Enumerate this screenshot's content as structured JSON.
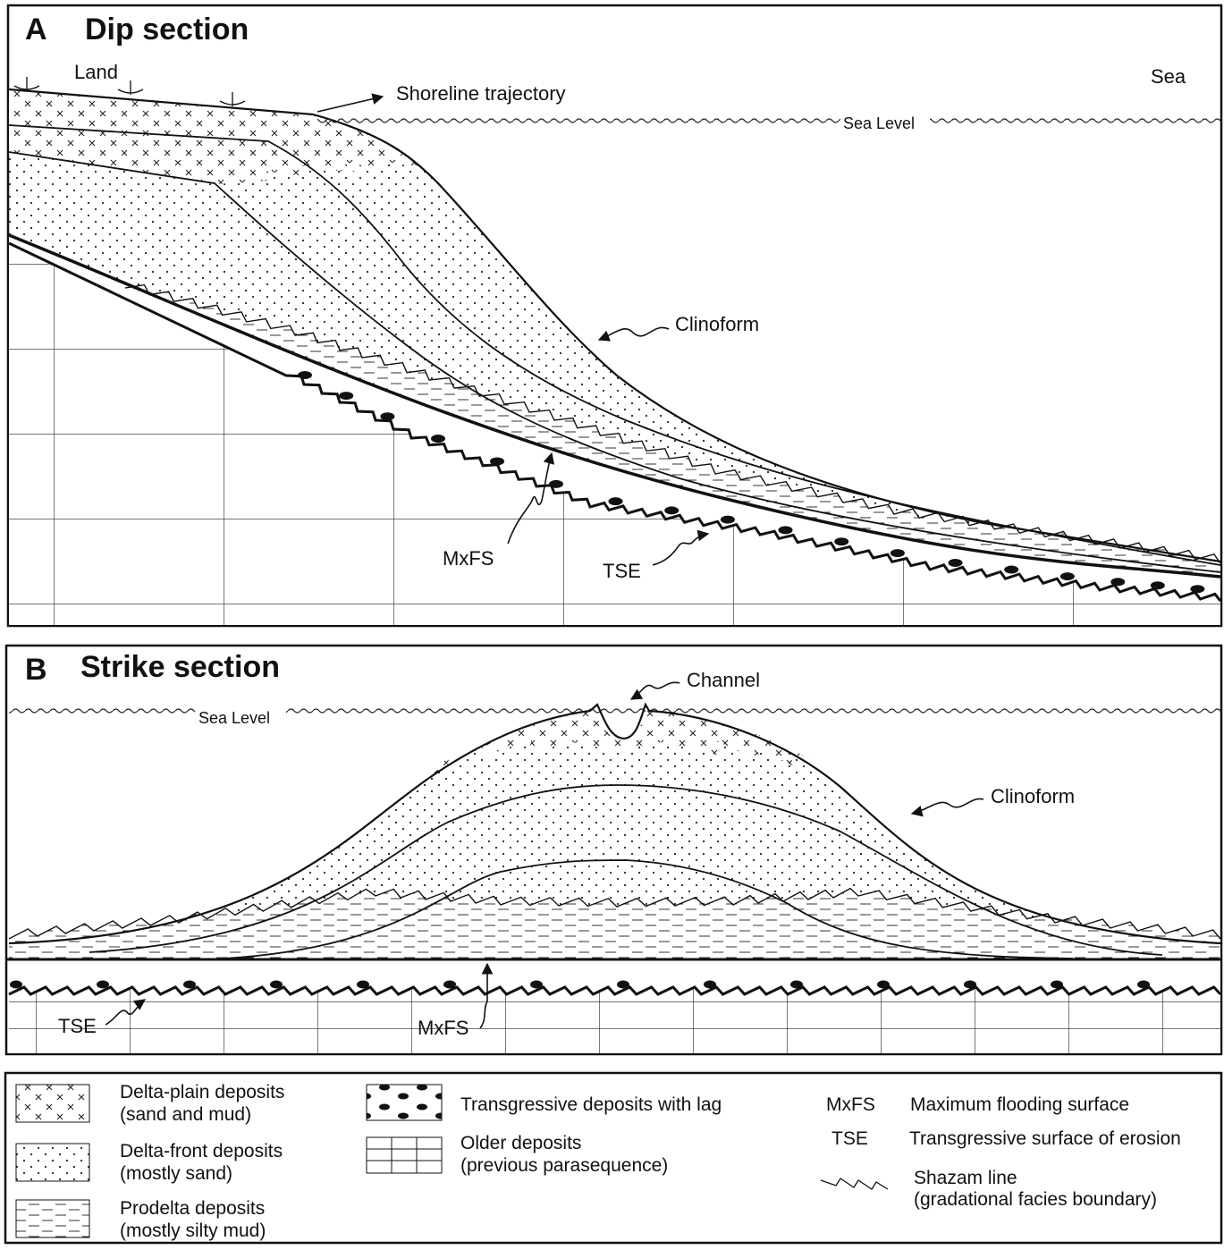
{
  "panel_a": {
    "letter": "A",
    "title": "Dip section",
    "land": "Land",
    "sea": "Sea",
    "shoreline_trajectory": "Shoreline trajectory",
    "sea_level": "Sea Level",
    "clinoform": "Clinoform",
    "mxfs": "MxFS",
    "tse": "TSE"
  },
  "panel_b": {
    "letter": "B",
    "title": "Strike section",
    "channel": "Channel",
    "sea_level": "Sea Level",
    "clinoform": "Clinoform",
    "tse": "TSE",
    "mxfs": "MxFS"
  },
  "legend": {
    "items": [
      {
        "label": "Delta-plain deposits",
        "note": "(sand and mud)"
      },
      {
        "label": "Delta-front deposits",
        "note": "(mostly sand)"
      },
      {
        "label": "Prodelta deposits",
        "note": "(mostly silty mud)"
      },
      {
        "label": "Transgressive deposits with lag"
      },
      {
        "label": "Older deposits",
        "note": "(previous parasequence)"
      }
    ],
    "abbreviations": [
      {
        "abbr": "MxFS",
        "meaning": "Maximum flooding surface"
      },
      {
        "abbr": "TSE",
        "meaning": "Transgressive surface of erosion"
      }
    ],
    "shazam": {
      "label": "Shazam line",
      "note": "(gradational facies boundary)"
    }
  }
}
